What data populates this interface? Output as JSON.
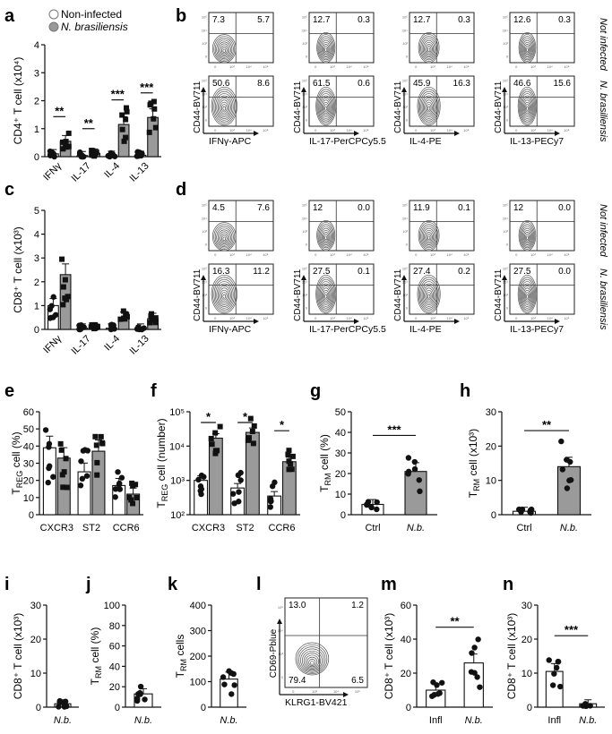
{
  "panel_labels": {
    "a": "a",
    "b": "b",
    "c": "c",
    "d": "d",
    "e": "e",
    "f": "f",
    "g": "g",
    "h": "h",
    "i": "i",
    "j": "j",
    "k": "k",
    "l": "l",
    "m": "m",
    "n": "n"
  },
  "legend": [
    {
      "label": "Non-infected",
      "fill": "#ffffff"
    },
    {
      "label": "N. brasiliensis",
      "fill": "#999999"
    }
  ],
  "conditions": {
    "top": "Not infected",
    "bottom": "N. brasiliensis"
  },
  "facs_axes": {
    "y_label": "CD44-BV711",
    "x_labels": [
      "IFNγ-APC",
      "IL-17-PerCPCy5.5",
      "IL-4-PE",
      "IL-13-PECy7"
    ]
  },
  "facs_b": {
    "top": [
      [
        "7.3",
        "5.7"
      ],
      [
        "12.7",
        "0.3"
      ],
      [
        "12.7",
        "0.3"
      ],
      [
        "12.6",
        "0.3"
      ]
    ],
    "bottom": [
      [
        "50.6",
        "8.6"
      ],
      [
        "61.5",
        "0.6"
      ],
      [
        "45.9",
        "16.3"
      ],
      [
        "46.6",
        "15.6"
      ]
    ]
  },
  "facs_d": {
    "top": [
      [
        "4.5",
        "7.6"
      ],
      [
        "12",
        "0.0"
      ],
      [
        "11.9",
        "0.1"
      ],
      [
        "12",
        "0.0"
      ]
    ],
    "bottom": [
      [
        "16.3",
        "11.2"
      ],
      [
        "27.5",
        "0.1"
      ],
      [
        "27.4",
        "0.2"
      ],
      [
        "27.5",
        "0.0"
      ]
    ]
  },
  "facs_l": {
    "quadrants": [
      "13.0",
      "1.2",
      "79.4",
      "6.5"
    ],
    "x_label": "KLRG1-BV421",
    "y_label": "CD69-Pblue"
  },
  "chart_data": [
    {
      "panel": "a",
      "type": "bar",
      "categories": [
        "IFNγ",
        "IL-17",
        "IL-4",
        "IL-13"
      ],
      "series": [
        {
          "name": "Non-infected",
          "values": [
            0.1,
            0.04,
            0.05,
            0.05
          ]
        },
        {
          "name": "N. brasiliensis",
          "values": [
            0.55,
            0.12,
            1.15,
            1.4
          ]
        }
      ],
      "ylabel": "CD4⁺ T cell (x10⁴)",
      "ylim": [
        0,
        4
      ],
      "yticks": [
        "0",
        "1",
        "2",
        "3",
        "4"
      ],
      "significance": [
        "**",
        "**",
        "***",
        "***"
      ]
    },
    {
      "panel": "c",
      "type": "bar",
      "categories": [
        "IFNγ",
        "IL-17",
        "IL-4",
        "IL-13"
      ],
      "series": [
        {
          "name": "Non-infected",
          "values": [
            1.0,
            0.05,
            0.05,
            0.05
          ]
        },
        {
          "name": "N. brasiliensis",
          "values": [
            2.3,
            0.07,
            0.5,
            0.45
          ]
        }
      ],
      "ylabel": "CD8⁺ T cell (x10³)",
      "ylim": [
        0,
        5
      ],
      "yticks": [
        "0",
        "1",
        "2",
        "3",
        "4",
        "5"
      ]
    },
    {
      "panel": "e",
      "type": "bar",
      "categories": [
        "CXCR3",
        "ST2",
        "CCR6"
      ],
      "series": [
        {
          "name": "Non-infected",
          "values": [
            39,
            25,
            17
          ]
        },
        {
          "name": "N. brasiliensis",
          "values": [
            33,
            37,
            12
          ]
        }
      ],
      "ylabel": "TREG cell (%)",
      "ylim": [
        0,
        60
      ],
      "yticks": [
        "0",
        "10",
        "20",
        "30",
        "40",
        "50",
        "60"
      ]
    },
    {
      "panel": "f",
      "type": "bar",
      "log": true,
      "categories": [
        "CXCR3",
        "ST2",
        "CCR6"
      ],
      "series": [
        {
          "name": "Non-infected",
          "values": [
            1000,
            600,
            350
          ]
        },
        {
          "name": "N. brasiliensis",
          "values": [
            17000,
            25000,
            3500
          ]
        }
      ],
      "ylabel": "TREG cell (number)",
      "ylim": [
        100,
        100000
      ],
      "yticks": [
        "10²",
        "10³",
        "10⁴",
        "10⁵"
      ],
      "significance": [
        "*",
        "*",
        "*"
      ]
    },
    {
      "panel": "g",
      "type": "bar",
      "categories": [
        "Ctrl",
        "N.b."
      ],
      "values": [
        5,
        21
      ],
      "ylabel": "TRM cell (%)",
      "ylim": [
        0,
        50
      ],
      "yticks": [
        "0",
        "10",
        "20",
        "30",
        "40",
        "50"
      ],
      "significance": [
        "***"
      ]
    },
    {
      "panel": "h",
      "type": "bar",
      "categories": [
        "Ctrl",
        "N.b."
      ],
      "values": [
        1,
        14
      ],
      "ylabel": "TRM cell (x10³)",
      "ylim": [
        0,
        30
      ],
      "yticks": [
        "0",
        "10",
        "20",
        "30"
      ],
      "significance": [
        "**"
      ]
    },
    {
      "panel": "i",
      "type": "bar",
      "categories": [
        "N.b."
      ],
      "values": [
        1.0
      ],
      "ylabel": "CD8⁺ T cell (x10³)",
      "ylim": [
        0,
        30
      ],
      "yticks": [
        "0",
        "10",
        "20",
        "30"
      ]
    },
    {
      "panel": "j",
      "type": "bar",
      "categories": [
        "N.b."
      ],
      "values": [
        13
      ],
      "ylabel": "TRM cell (%)",
      "ylim": [
        0,
        100
      ],
      "yticks": [
        "0",
        "20",
        "40",
        "60",
        "80",
        "100"
      ]
    },
    {
      "panel": "k",
      "type": "bar",
      "categories": [
        "N.b."
      ],
      "values": [
        110
      ],
      "ylabel": "TRM cells",
      "ylim": [
        0,
        400
      ],
      "yticks": [
        "0",
        "100",
        "200",
        "300",
        "400"
      ]
    },
    {
      "panel": "m",
      "type": "bar",
      "categories": [
        "Infl",
        "N.b."
      ],
      "values": [
        10,
        26
      ],
      "ylabel": "CD8⁺ T cell (x10³)",
      "ylim": [
        0,
        60
      ],
      "yticks": [
        "0",
        "20",
        "40",
        "60"
      ],
      "significance": [
        "**"
      ]
    },
    {
      "panel": "n",
      "type": "bar",
      "categories": [
        "Infl",
        "N.b."
      ],
      "values": [
        10.5,
        1
      ],
      "ylabel": "CD8⁺ T cell (x10³)",
      "ylim": [
        0,
        30
      ],
      "yticks": [
        "0",
        "10",
        "20",
        "30"
      ],
      "significance": [
        "***"
      ]
    }
  ]
}
